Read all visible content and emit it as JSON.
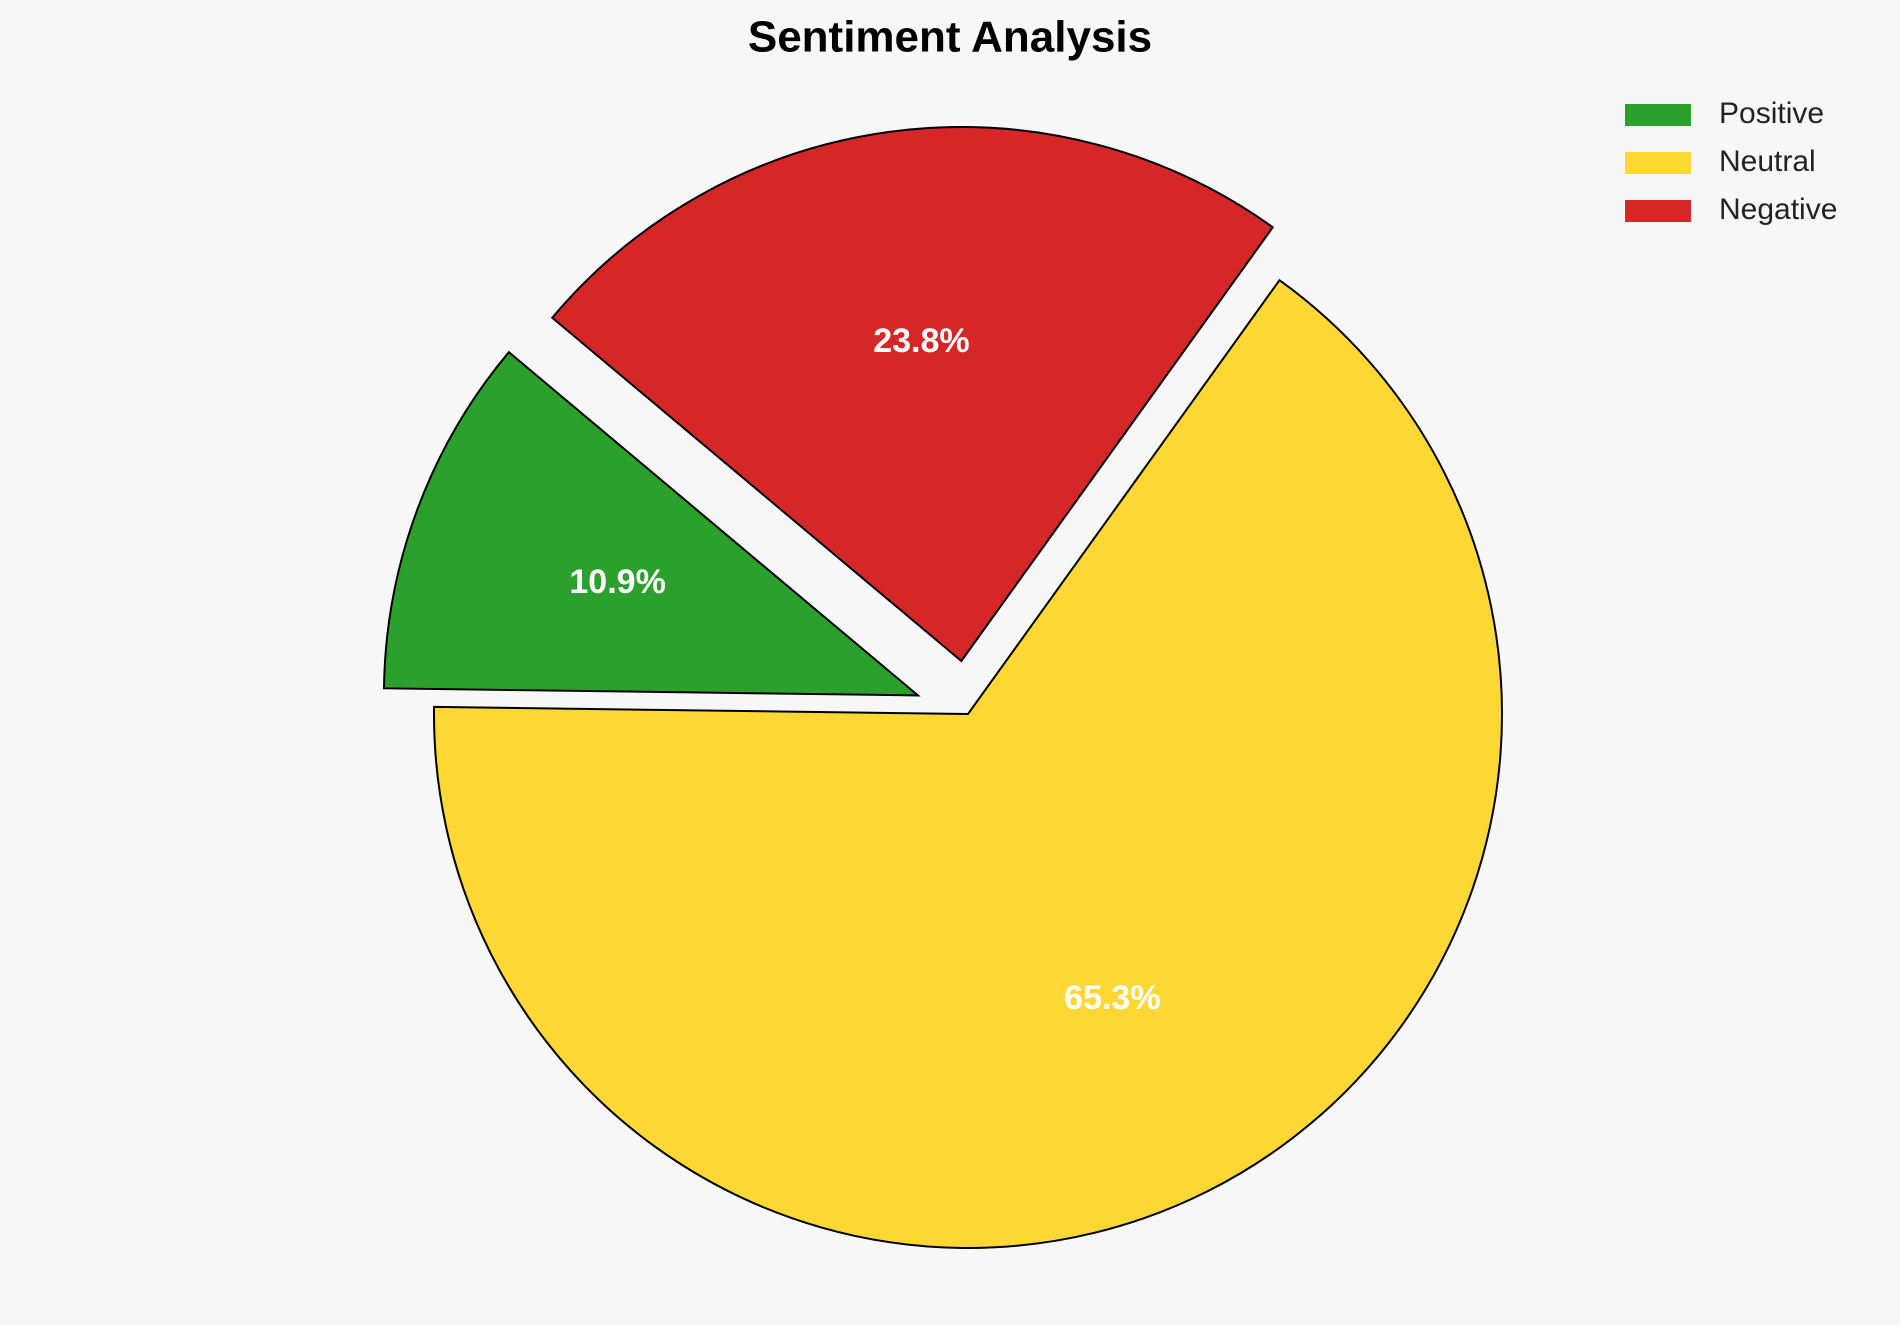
{
  "chart_data": {
    "type": "pie",
    "title": "Sentiment Analysis",
    "categories": [
      "Positive",
      "Neutral",
      "Negative"
    ],
    "values": [
      10.9,
      65.3,
      23.8
    ],
    "value_labels": [
      "10.9%",
      "65.3%",
      "23.8%"
    ],
    "colors": [
      "#2ca02c",
      "#fdd835",
      "#d62728"
    ],
    "explode": [
      0.1,
      0,
      0.1
    ],
    "startangle": 140,
    "legend": "upper right"
  }
}
